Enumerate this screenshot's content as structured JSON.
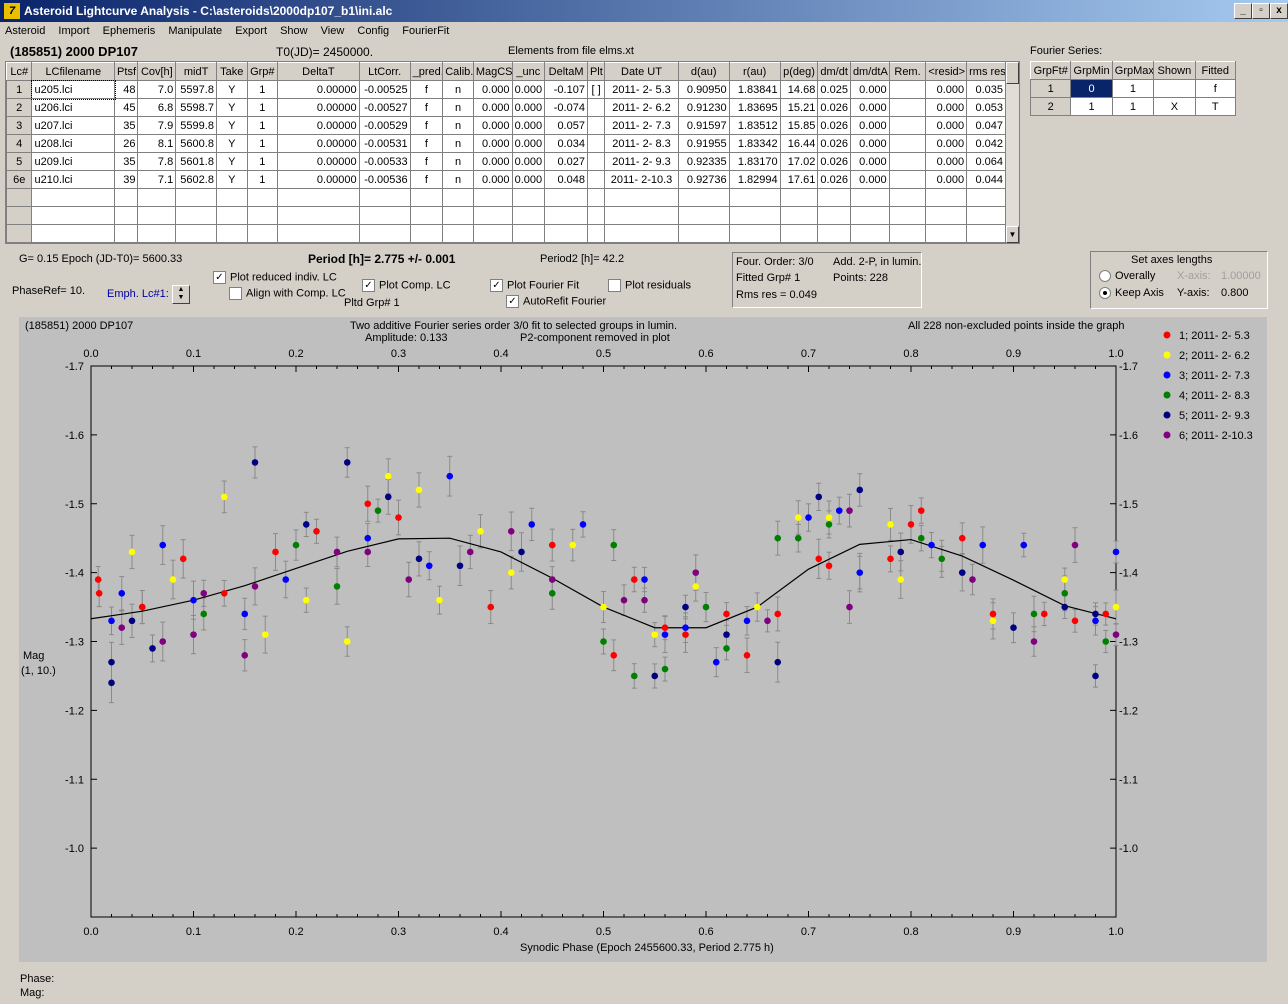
{
  "window": {
    "title": "Asteroid Lightcurve Analysis - C:\\asteroids\\2000dp107_b1\\ini.alc",
    "app_icon": "7",
    "buttons": [
      "_",
      "▫",
      "x"
    ]
  },
  "menu": [
    "Asteroid",
    "Import",
    "Ephemeris",
    "Manipulate",
    "Export",
    "Show",
    "View",
    "Config",
    "FourierFit"
  ],
  "header": {
    "object": "(185851) 2000 DP107",
    "t0": "T0(JD)= 2450000.",
    "elements": "Elements from file elms.xt",
    "fourier_series_label": "Fourier Series:"
  },
  "lc_table": {
    "columns": [
      "Lc#",
      "LCfilename",
      "Ptsf",
      "Cov[h]",
      "midT",
      "Take",
      "Grp#",
      "DeltaT",
      "LtCorr.",
      "_pred.",
      "Calib.",
      "MagCS",
      "_unc",
      "DeltaM",
      "Plt",
      "Date UT",
      "d(au)",
      "r(au)",
      "p(deg)",
      "dm/dt",
      "dm/dtA",
      "Rem.",
      "<resid>",
      "rms res"
    ],
    "rows": [
      [
        "1",
        "u205.lci",
        "48",
        "7.0",
        "5597.8",
        "Y",
        "1",
        "0.00000",
        "-0.00525",
        "f",
        "n",
        "0.000",
        "0.000",
        "-0.107",
        "[ ]",
        "2011- 2- 5.3",
        "0.90950",
        "1.83841",
        "14.68",
        "0.025",
        "0.000",
        "",
        "0.000",
        "0.035"
      ],
      [
        "2",
        "u206.lci",
        "45",
        "6.8",
        "5598.7",
        "Y",
        "1",
        "0.00000",
        "-0.00527",
        "f",
        "n",
        "0.000",
        "0.000",
        "-0.074",
        "",
        "2011- 2- 6.2",
        "0.91230",
        "1.83695",
        "15.21",
        "0.026",
        "0.000",
        "",
        "0.000",
        "0.053"
      ],
      [
        "3",
        "u207.lci",
        "35",
        "7.9",
        "5599.8",
        "Y",
        "1",
        "0.00000",
        "-0.00529",
        "f",
        "n",
        "0.000",
        "0.000",
        "0.057",
        "",
        "2011- 2- 7.3",
        "0.91597",
        "1.83512",
        "15.85",
        "0.026",
        "0.000",
        "",
        "0.000",
        "0.047"
      ],
      [
        "4",
        "u208.lci",
        "26",
        "8.1",
        "5600.8",
        "Y",
        "1",
        "0.00000",
        "-0.00531",
        "f",
        "n",
        "0.000",
        "0.000",
        "0.034",
        "",
        "2011- 2- 8.3",
        "0.91955",
        "1.83342",
        "16.44",
        "0.026",
        "0.000",
        "",
        "0.000",
        "0.042"
      ],
      [
        "5",
        "u209.lci",
        "35",
        "7.8",
        "5601.8",
        "Y",
        "1",
        "0.00000",
        "-0.00533",
        "f",
        "n",
        "0.000",
        "0.000",
        "0.027",
        "",
        "2011- 2- 9.3",
        "0.92335",
        "1.83170",
        "17.02",
        "0.026",
        "0.000",
        "",
        "0.000",
        "0.064"
      ],
      [
        "6e",
        "u210.lci",
        "39",
        "7.1",
        "5602.8",
        "Y",
        "1",
        "0.00000",
        "-0.00536",
        "f",
        "n",
        "0.000",
        "0.000",
        "0.048",
        "",
        "2011- 2-10.3",
        "0.92736",
        "1.82994",
        "17.61",
        "0.026",
        "0.000",
        "",
        "0.000",
        "0.044"
      ]
    ],
    "empty_rows": 3
  },
  "fourier_table": {
    "columns": [
      "GrpFt#",
      "GrpMin",
      "GrpMax",
      "Shown",
      "Fitted"
    ],
    "rows": [
      [
        "1",
        "0",
        "1",
        "",
        "f"
      ],
      [
        "2",
        "1",
        "1",
        "X",
        "T"
      ]
    ]
  },
  "controls": {
    "g_epoch": "G= 0.15   Epoch (JD-T0)= 5600.33",
    "period": "Period [h]= 2.775 +/- 0.001",
    "period2": "Period2 [h]= 42.2",
    "phase_ref": "PhaseRef= 10.",
    "emph_lc": "Emph. Lc#1:",
    "plot_reduced": "Plot reduced indiv. LC",
    "align_comp": "Align with Comp. LC",
    "plot_comp": "Plot Comp. LC",
    "pltd_grp": "Pltd Grp#  1",
    "plot_fourier": "Plot Fourier Fit",
    "autorefit": "AutoRefit Fourier",
    "plot_residuals": "Plot residuals",
    "checks": {
      "plot_reduced": true,
      "align_comp": false,
      "plot_comp": true,
      "plot_fourier": true,
      "autorefit": true,
      "plot_residuals": false
    }
  },
  "fit_info": {
    "order": "Four. Order:  3/0",
    "add": "Add. 2-P, in lumin.",
    "fitted": "Fitted Grp# 1",
    "points": "Points: 228",
    "rms": "Rms res     = 0.049"
  },
  "axes_box": {
    "title": "Set axes lengths",
    "overally": "Overally",
    "keep_axis": "Keep Axis",
    "xaxis_label": "X-axis:",
    "xaxis_value": "1.00000",
    "yaxis_label": "Y-axis:",
    "yaxis_value": "0.800",
    "selected": "keep_axis"
  },
  "plot": {
    "object": "(185851) 2000 DP107",
    "title_line1": "Two additive Fourier series order 3/0 fit to selected groups in lumin.",
    "amplitude": "Amplitude: 0.133",
    "p2note": "P2-component removed in plot",
    "points_note": "All 228 non-excluded points inside the graph",
    "ylabel1": "Mag",
    "ylabel2": "(1, 10.)",
    "xlabel": "Synodic Phase (Epoch 2455600.33, Period 2.775 h)"
  },
  "status": {
    "phase": "Phase:",
    "mag": "Mag:"
  },
  "colors": {
    "plot_bg": "#bfbfbf",
    "selected_cell": "#0a246a"
  },
  "chart_data": {
    "type": "scatter",
    "x_range": [
      0.0,
      1.0
    ],
    "y_range": [
      -1.7,
      -0.9
    ],
    "y_inverted": true,
    "x_ticks": [
      "0.0",
      "0.1",
      "0.2",
      "0.3",
      "0.4",
      "0.5",
      "0.6",
      "0.7",
      "0.8",
      "0.9",
      "1.0"
    ],
    "y_ticks": [
      "-1.7",
      "-1.6",
      "-1.5",
      "-1.4",
      "-1.3",
      "-1.2",
      "-1.1",
      "-1.0"
    ],
    "grid": false,
    "legend_position": "right",
    "fourier_curve": {
      "phase": [
        0.0,
        0.05,
        0.1,
        0.15,
        0.2,
        0.25,
        0.3,
        0.35,
        0.4,
        0.45,
        0.5,
        0.55,
        0.6,
        0.65,
        0.7,
        0.75,
        0.8,
        0.85,
        0.9,
        0.95,
        1.0
      ],
      "mag": [
        -1.333,
        -1.344,
        -1.36,
        -1.381,
        -1.406,
        -1.431,
        -1.449,
        -1.45,
        -1.43,
        -1.392,
        -1.35,
        -1.32,
        -1.32,
        -1.35,
        -1.405,
        -1.441,
        -1.448,
        -1.424,
        -1.389,
        -1.352,
        -1.333
      ]
    },
    "series": [
      {
        "name": "1; 2011- 2- 5.3",
        "color": "#ff0000",
        "points": [
          [
            0.007,
            -1.39
          ],
          [
            0.008,
            -1.37
          ],
          [
            0.05,
            -1.35
          ],
          [
            0.05,
            -1.35
          ],
          [
            0.09,
            -1.42
          ],
          [
            0.13,
            -1.37
          ],
          [
            0.18,
            -1.43
          ],
          [
            0.22,
            -1.46
          ],
          [
            0.27,
            -1.5
          ],
          [
            0.3,
            -1.48
          ],
          [
            0.39,
            -1.35
          ],
          [
            0.45,
            -1.44
          ],
          [
            0.53,
            -1.39
          ],
          [
            0.56,
            -1.32
          ],
          [
            0.51,
            -1.28
          ],
          [
            0.58,
            -1.31
          ],
          [
            0.62,
            -1.34
          ],
          [
            0.64,
            -1.28
          ],
          [
            0.67,
            -1.34
          ],
          [
            0.71,
            -1.42
          ],
          [
            0.72,
            -1.41
          ],
          [
            0.78,
            -1.42
          ],
          [
            0.8,
            -1.47
          ],
          [
            0.81,
            -1.49
          ],
          [
            0.85,
            -1.45
          ],
          [
            0.88,
            -1.34
          ],
          [
            0.93,
            -1.34
          ],
          [
            0.96,
            -1.33
          ],
          [
            0.99,
            -1.34
          ]
        ]
      },
      {
        "name": "2; 2011- 2- 6.2",
        "color": "#ffff00",
        "points": [
          [
            0.04,
            -1.43
          ],
          [
            0.08,
            -1.39
          ],
          [
            0.13,
            -1.51
          ],
          [
            0.17,
            -1.31
          ],
          [
            0.21,
            -1.36
          ],
          [
            0.25,
            -1.3
          ],
          [
            0.29,
            -1.54
          ],
          [
            0.32,
            -1.52
          ],
          [
            0.34,
            -1.36
          ],
          [
            0.38,
            -1.46
          ],
          [
            0.41,
            -1.4
          ],
          [
            0.47,
            -1.44
          ],
          [
            0.5,
            -1.35
          ],
          [
            0.55,
            -1.31
          ],
          [
            0.59,
            -1.38
          ],
          [
            0.65,
            -1.35
          ],
          [
            0.69,
            -1.48
          ],
          [
            0.72,
            -1.48
          ],
          [
            0.75,
            -1.4
          ],
          [
            0.78,
            -1.47
          ],
          [
            0.79,
            -1.39
          ],
          [
            0.83,
            -1.42
          ],
          [
            0.88,
            -1.33
          ],
          [
            0.95,
            -1.39
          ],
          [
            1.0,
            -1.35
          ]
        ]
      },
      {
        "name": "3; 2011- 2- 7.3",
        "color": "#0000ff",
        "points": [
          [
            0.02,
            -1.33
          ],
          [
            0.03,
            -1.37
          ],
          [
            0.07,
            -1.44
          ],
          [
            0.1,
            -1.36
          ],
          [
            0.15,
            -1.34
          ],
          [
            0.19,
            -1.39
          ],
          [
            0.27,
            -1.45
          ],
          [
            0.33,
            -1.41
          ],
          [
            0.35,
            -1.54
          ],
          [
            0.43,
            -1.47
          ],
          [
            0.48,
            -1.47
          ],
          [
            0.54,
            -1.39
          ],
          [
            0.56,
            -1.31
          ],
          [
            0.58,
            -1.32
          ],
          [
            0.61,
            -1.27
          ],
          [
            0.64,
            -1.33
          ],
          [
            0.7,
            -1.48
          ],
          [
            0.73,
            -1.49
          ],
          [
            0.75,
            -1.4
          ],
          [
            0.82,
            -1.44
          ],
          [
            0.87,
            -1.44
          ],
          [
            0.91,
            -1.44
          ],
          [
            0.98,
            -1.33
          ],
          [
            1.0,
            -1.43
          ]
        ]
      },
      {
        "name": "4; 2011- 2- 8.3",
        "color": "#008000",
        "points": [
          [
            0.11,
            -1.34
          ],
          [
            0.2,
            -1.44
          ],
          [
            0.24,
            -1.38
          ],
          [
            0.28,
            -1.49
          ],
          [
            0.45,
            -1.37
          ],
          [
            0.5,
            -1.3
          ],
          [
            0.51,
            -1.44
          ],
          [
            0.53,
            -1.25
          ],
          [
            0.56,
            -1.26
          ],
          [
            0.6,
            -1.35
          ],
          [
            0.62,
            -1.29
          ],
          [
            0.67,
            -1.45
          ],
          [
            0.69,
            -1.45
          ],
          [
            0.72,
            -1.47
          ],
          [
            0.81,
            -1.45
          ],
          [
            0.83,
            -1.42
          ],
          [
            0.92,
            -1.34
          ],
          [
            0.95,
            -1.37
          ],
          [
            0.99,
            -1.3
          ]
        ]
      },
      {
        "name": "5; 2011- 2- 9.3",
        "color": "#000080",
        "points": [
          [
            0.02,
            -1.27
          ],
          [
            0.02,
            -1.24
          ],
          [
            0.04,
            -1.33
          ],
          [
            0.06,
            -1.29
          ],
          [
            0.16,
            -1.56
          ],
          [
            0.21,
            -1.47
          ],
          [
            0.25,
            -1.56
          ],
          [
            0.29,
            -1.51
          ],
          [
            0.32,
            -1.42
          ],
          [
            0.36,
            -1.41
          ],
          [
            0.42,
            -1.43
          ],
          [
            0.55,
            -1.25
          ],
          [
            0.58,
            -1.35
          ],
          [
            0.62,
            -1.31
          ],
          [
            0.67,
            -1.27
          ],
          [
            0.71,
            -1.51
          ],
          [
            0.75,
            -1.52
          ],
          [
            0.79,
            -1.43
          ],
          [
            0.85,
            -1.4
          ],
          [
            0.9,
            -1.32
          ],
          [
            0.95,
            -1.35
          ],
          [
            0.98,
            -1.25
          ],
          [
            0.98,
            -1.34
          ]
        ]
      },
      {
        "name": "6; 2011- 2-10.3",
        "color": "#800080",
        "points": [
          [
            0.03,
            -1.32
          ],
          [
            0.07,
            -1.3
          ],
          [
            0.1,
            -1.31
          ],
          [
            0.11,
            -1.37
          ],
          [
            0.15,
            -1.28
          ],
          [
            0.16,
            -1.38
          ],
          [
            0.24,
            -1.43
          ],
          [
            0.27,
            -1.43
          ],
          [
            0.31,
            -1.39
          ],
          [
            0.37,
            -1.43
          ],
          [
            0.41,
            -1.46
          ],
          [
            0.45,
            -1.39
          ],
          [
            0.52,
            -1.36
          ],
          [
            0.54,
            -1.36
          ],
          [
            0.59,
            -1.4
          ],
          [
            0.66,
            -1.33
          ],
          [
            0.74,
            -1.49
          ],
          [
            0.74,
            -1.35
          ],
          [
            0.86,
            -1.39
          ],
          [
            0.92,
            -1.3
          ],
          [
            0.96,
            -1.44
          ],
          [
            1.0,
            -1.31
          ]
        ]
      }
    ]
  }
}
